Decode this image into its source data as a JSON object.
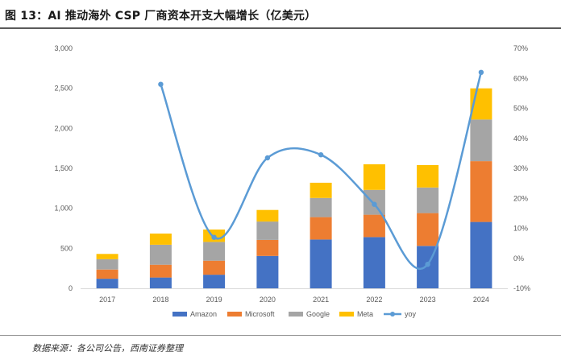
{
  "title": "图 13：AI 推动海外 CSP 厂商资本开支大幅增长（亿美元）",
  "source": "数据来源：各公司公告，西南证券整理",
  "colors": {
    "Amazon": "#4472c4",
    "Microsoft": "#ed7d31",
    "Google": "#a5a5a5",
    "Meta": "#ffc000",
    "yoy": "#5b9bd5"
  },
  "chart_data": {
    "type": "bar",
    "stacked": true,
    "categories": [
      "2017",
      "2018",
      "2019",
      "2020",
      "2021",
      "2022",
      "2023",
      "2024"
    ],
    "series": [
      {
        "name": "Amazon",
        "values": [
          120,
          135,
          170,
          405,
          610,
          640,
          530,
          830
        ]
      },
      {
        "name": "Microsoft",
        "values": [
          115,
          160,
          175,
          200,
          280,
          280,
          410,
          760
        ]
      },
      {
        "name": "Google",
        "values": [
          130,
          250,
          235,
          230,
          240,
          310,
          320,
          520
        ]
      },
      {
        "name": "Meta",
        "values": [
          65,
          140,
          155,
          145,
          190,
          320,
          280,
          390
        ]
      }
    ],
    "line_series": {
      "name": "yoy",
      "values": [
        null,
        58,
        7,
        33.5,
        34.5,
        18,
        -2,
        62
      ]
    },
    "left_axis": {
      "min": 0,
      "max": 3000,
      "ticks": [
        "0",
        "500",
        "1,000",
        "1,500",
        "2,000",
        "2,500",
        "3,000"
      ]
    },
    "right_axis": {
      "min": -10,
      "max": 70,
      "ticks": [
        "-10%",
        "0%",
        "10%",
        "20%",
        "30%",
        "40%",
        "50%",
        "60%",
        "70%"
      ]
    },
    "legend": "bottom",
    "grid": false
  }
}
